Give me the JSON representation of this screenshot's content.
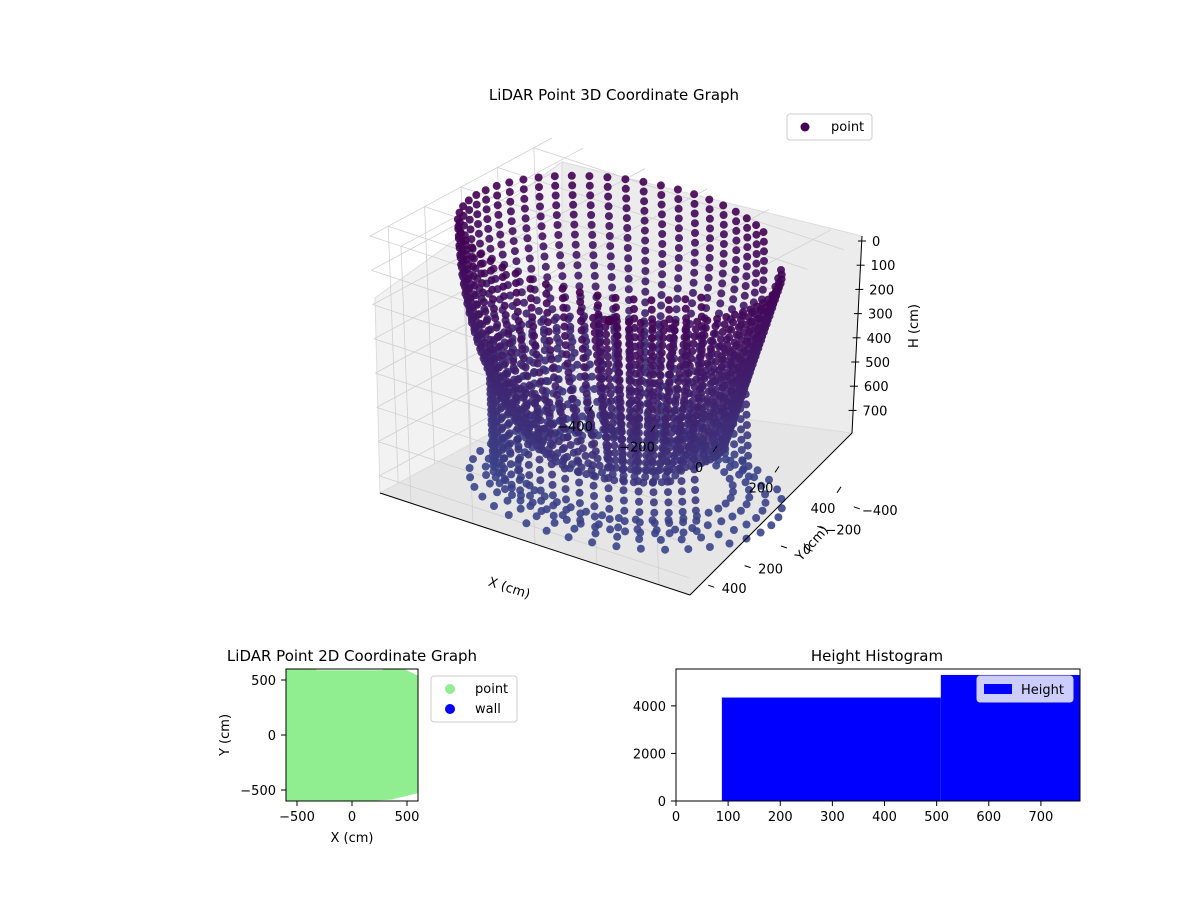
{
  "chart_data": [
    {
      "type": "scatter",
      "subtype": "3d",
      "title": "LiDAR Point 3D Coordinate Graph",
      "xlabel": "X (cm)",
      "ylabel": "Y (cm)",
      "zlabel": "H (cm)",
      "xticks": [
        "−400",
        "−200",
        "0",
        "200",
        "400"
      ],
      "yticks": [
        "−400",
        "−200",
        "0",
        "200",
        "400"
      ],
      "zticks": [
        "0",
        "100",
        "200",
        "300",
        "400",
        "500",
        "600",
        "700"
      ],
      "zlim": [
        0,
        750
      ],
      "z_inverted": true,
      "legend": {
        "labels": [
          "point"
        ],
        "position": "upper-right"
      },
      "colormap": "viridis",
      "grid": true
    },
    {
      "type": "scatter",
      "title": "LiDAR Point 2D Coordinate Graph",
      "xlabel": "X (cm)",
      "ylabel": "Y (cm)",
      "xticks": [
        "−500",
        "0",
        "500"
      ],
      "yticks": [
        "−500",
        "0",
        "500"
      ],
      "xlim": [
        -600,
        600
      ],
      "ylim": [
        -600,
        600
      ],
      "series": [
        {
          "name": "point",
          "color": "#90ee90"
        },
        {
          "name": "wall",
          "color": "#0000ff"
        }
      ],
      "legend": {
        "position": "outside-right"
      }
    },
    {
      "type": "bar",
      "subtype": "histogram",
      "title": "Height Histogram",
      "xticks": [
        "0",
        "100",
        "200",
        "300",
        "400",
        "500",
        "600",
        "700"
      ],
      "yticks": [
        "0",
        "2000",
        "4000"
      ],
      "xlim": [
        0,
        775
      ],
      "ylim": [
        0,
        5550
      ],
      "bins": [
        {
          "from": 88,
          "to": 508,
          "count": 4350
        },
        {
          "from": 508,
          "to": 775,
          "count": 5300
        }
      ],
      "series": [
        {
          "name": "Height",
          "color": "#0000ff"
        }
      ],
      "legend": {
        "position": "upper-right"
      }
    }
  ]
}
